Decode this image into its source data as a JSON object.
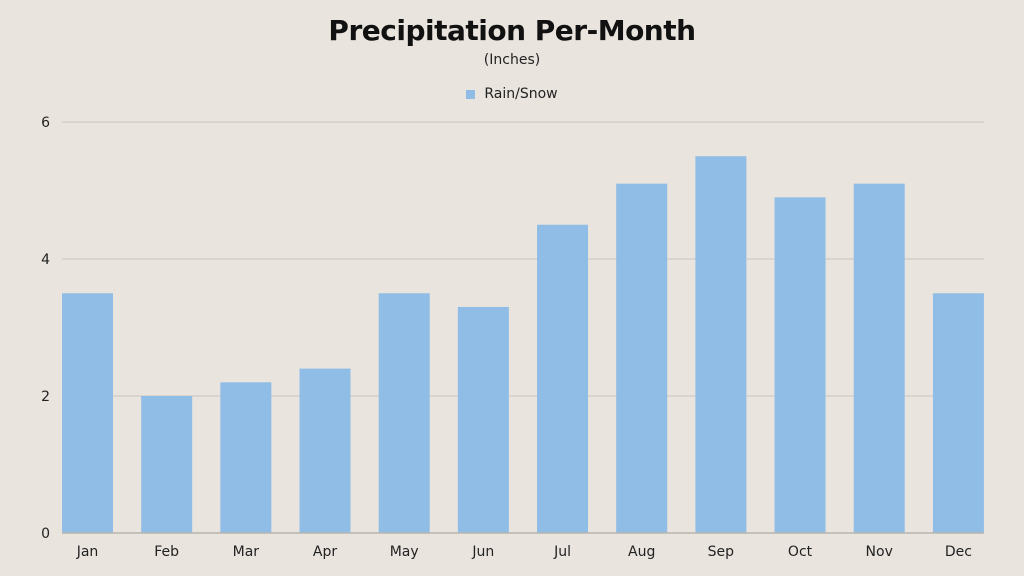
{
  "colors": {
    "background": "#e9e4de",
    "bar": "#90bde6",
    "gridline": "#c9c5c0",
    "baseline": "#b8b3ad"
  },
  "chart_data": {
    "type": "bar",
    "title": "Precipitation Per-Month",
    "subtitle": "(Inches)",
    "xlabel": "",
    "ylabel": "",
    "categories": [
      "Jan",
      "Feb",
      "Mar",
      "Apr",
      "May",
      "Jun",
      "Jul",
      "Aug",
      "Sep",
      "Oct",
      "Nov",
      "Dec"
    ],
    "series": [
      {
        "name": "Rain/Snow",
        "values": [
          3.5,
          2.0,
          2.2,
          2.4,
          3.5,
          3.3,
          4.5,
          5.1,
          5.5,
          4.9,
          5.1,
          3.5
        ]
      }
    ],
    "ylim": [
      0,
      6
    ],
    "yticks": [
      0,
      2,
      4,
      6
    ],
    "grid": true,
    "legend": "top-center"
  }
}
